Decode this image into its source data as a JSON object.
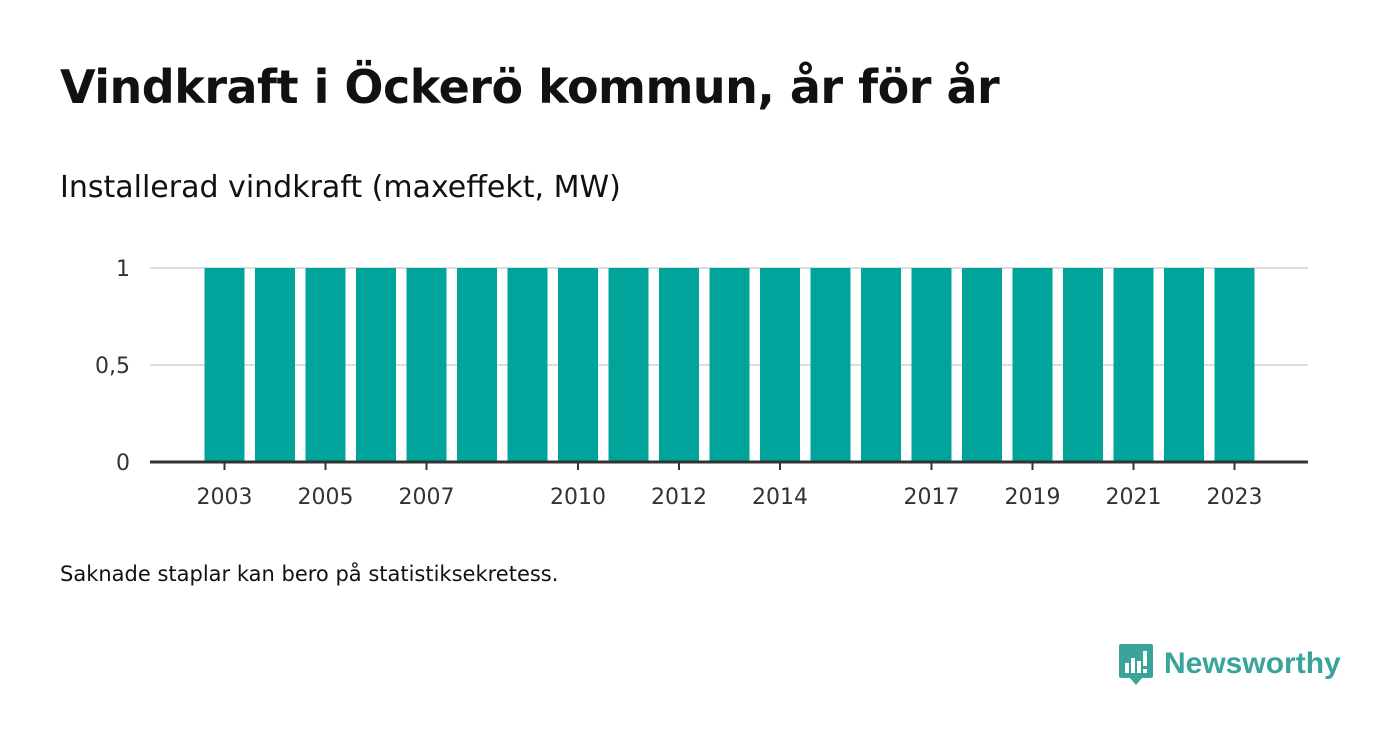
{
  "header": {
    "title": "Vindkraft i Öckerö kommun, år för år",
    "subtitle": "Installerad vindkraft (maxeffekt, MW)"
  },
  "footer": {
    "note": "Saknade staplar kan bero på statistiksekretess.",
    "brand": "Newsworthy",
    "brand_icon": "bar-chart-speech-bubble-icon"
  },
  "colors": {
    "bar": "#00a49a",
    "grid": "#dddddd",
    "axis": "#333333",
    "brand": "#3aa49a"
  },
  "chart_data": {
    "type": "bar",
    "categories": [
      "2003",
      "2004",
      "2005",
      "2006",
      "2007",
      "2008",
      "2009",
      "2010",
      "2011",
      "2012",
      "2013",
      "2014",
      "2015",
      "2016",
      "2017",
      "2018",
      "2019",
      "2020",
      "2021",
      "2022",
      "2023"
    ],
    "values": [
      1,
      1,
      1,
      1,
      1,
      1,
      1,
      1,
      1,
      1,
      1,
      1,
      1,
      1,
      1,
      1,
      1,
      1,
      1,
      1,
      1
    ],
    "x_tick_labels": [
      "2003",
      "2005",
      "2007",
      "2010",
      "2012",
      "2014",
      "2017",
      "2019",
      "2021",
      "2023"
    ],
    "y_ticks": [
      0,
      0.5,
      1
    ],
    "y_tick_labels": [
      "0",
      "0,5",
      "1"
    ],
    "ylim": [
      0,
      1
    ],
    "grid": true,
    "legend": false
  }
}
